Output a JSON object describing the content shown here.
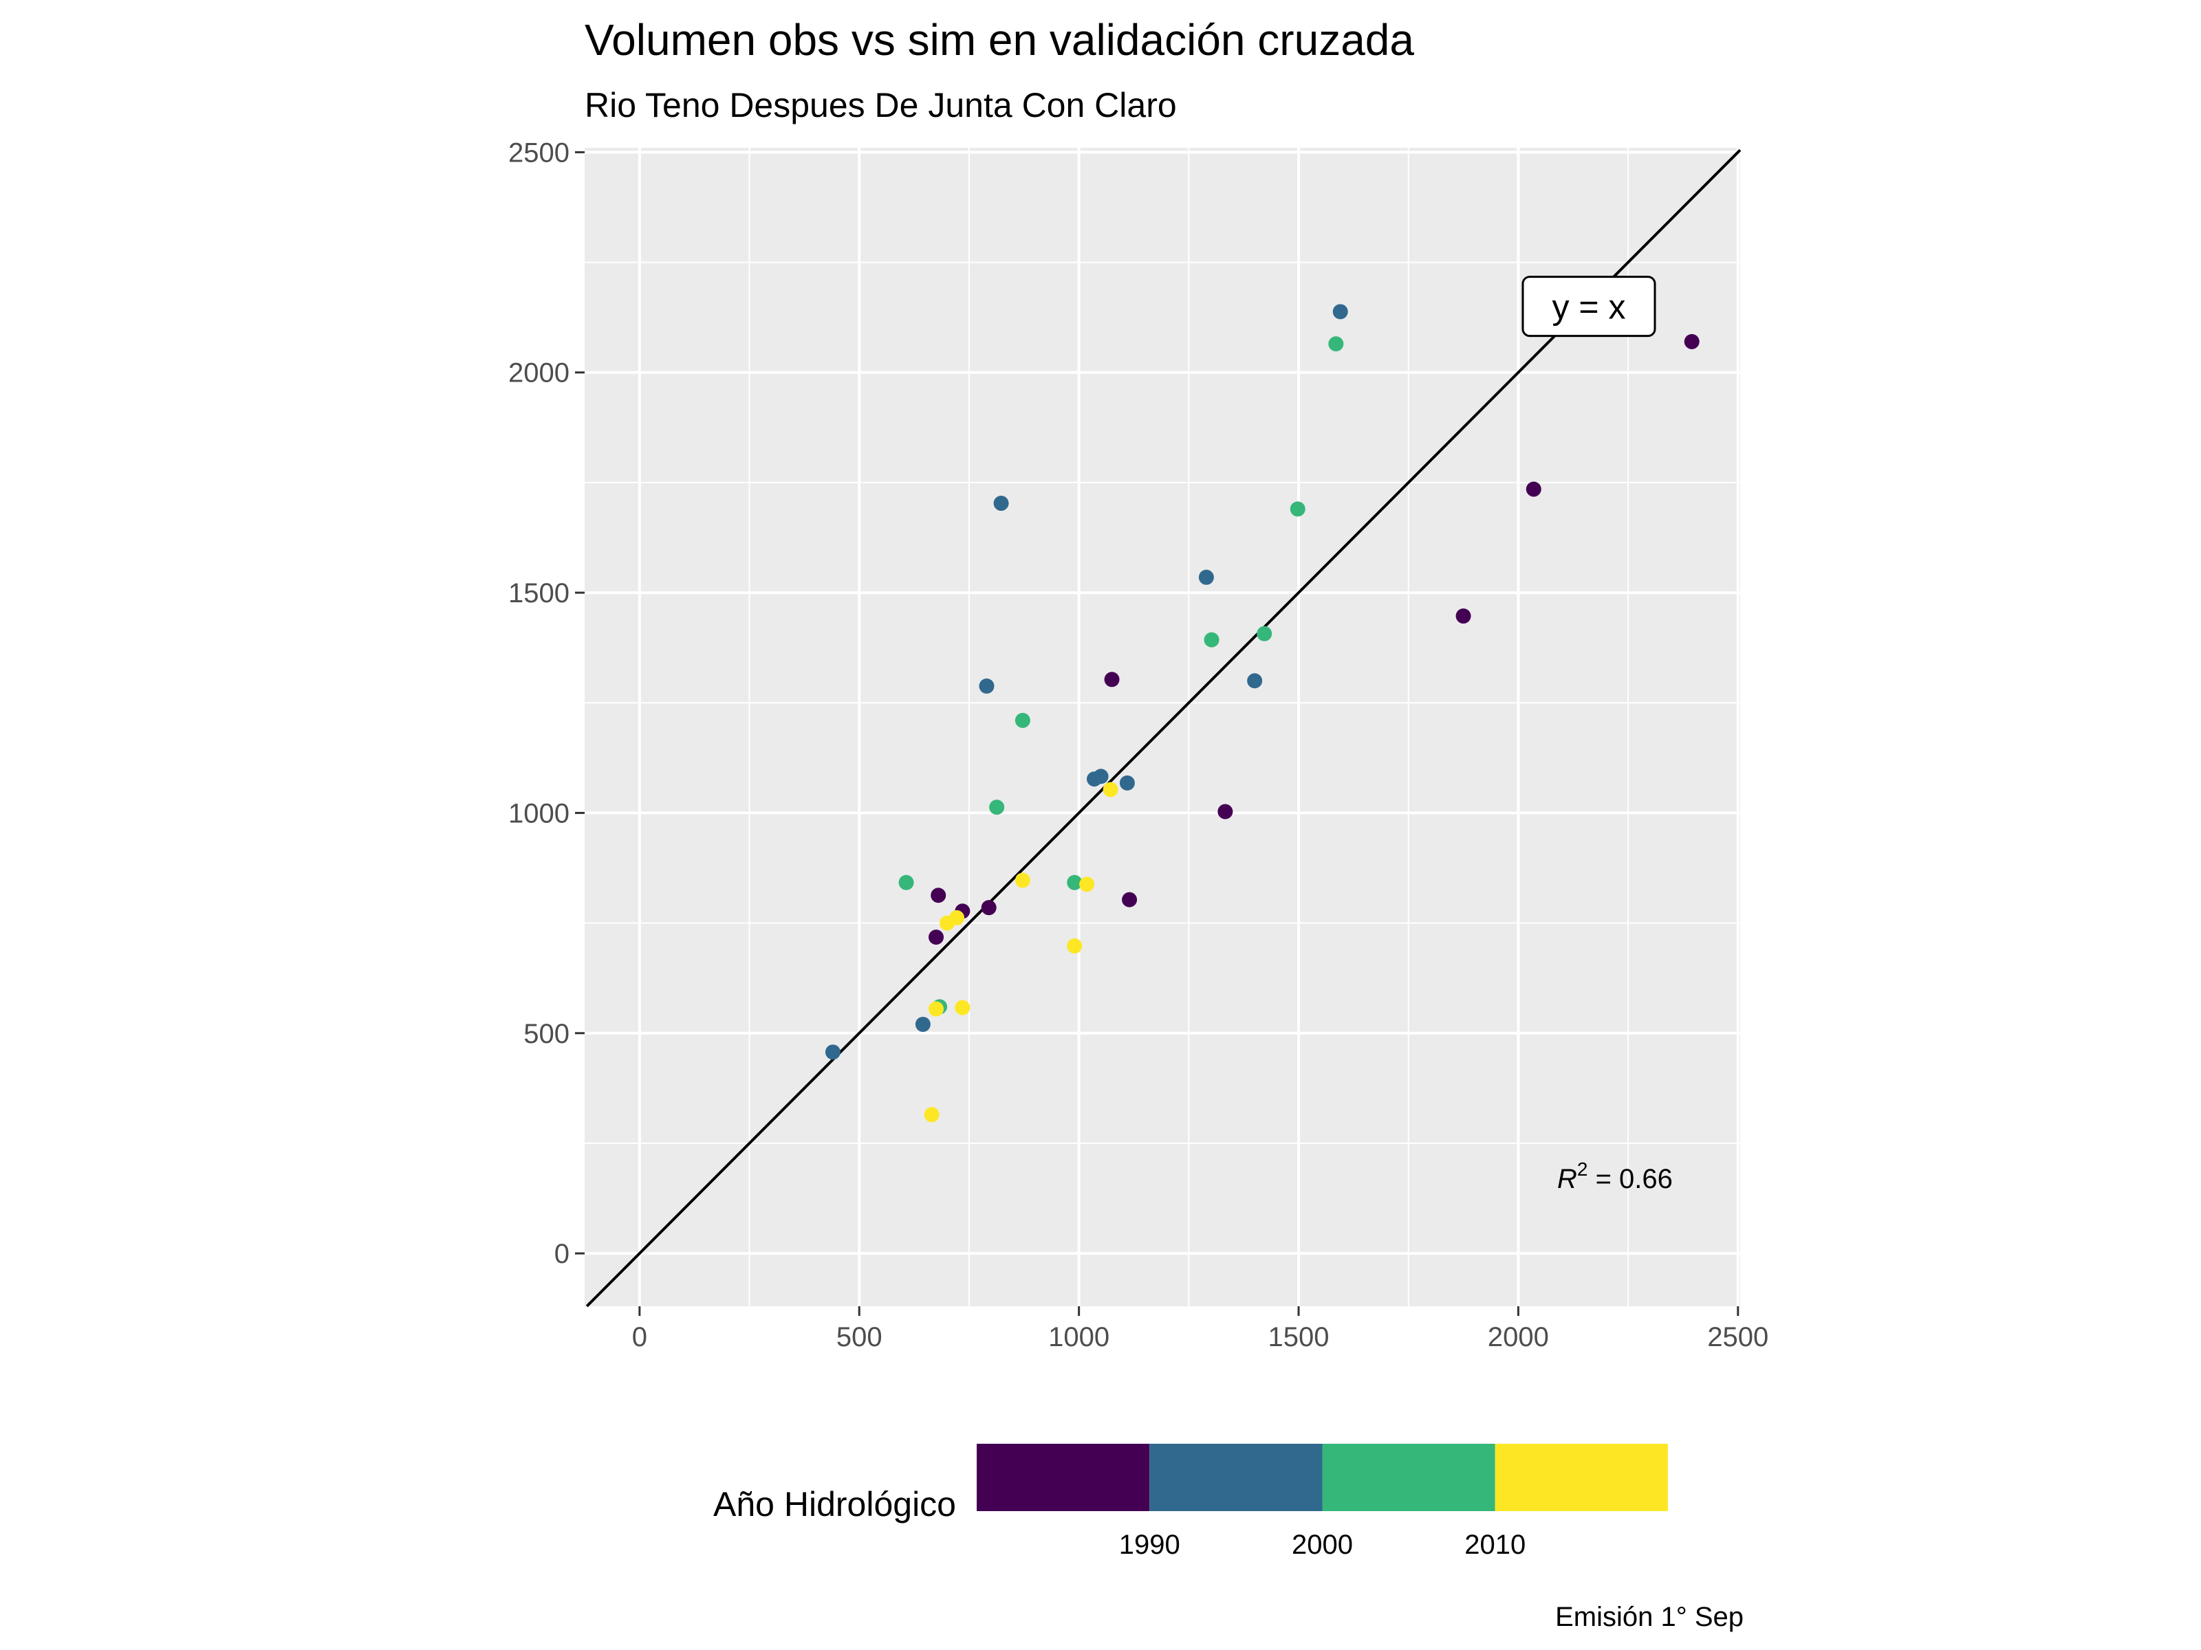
{
  "chart_data": {
    "type": "scatter",
    "title": "Volumen obs vs sim en validación cruzada",
    "subtitle": "Rio Teno Despues De Junta Con Claro",
    "xlabel": "",
    "ylabel": "",
    "xlim": [
      -125,
      2505
    ],
    "ylim": [
      -120,
      2510
    ],
    "x_ticks": [
      0,
      500,
      1000,
      1500,
      2000,
      2500
    ],
    "y_ticks": [
      0,
      500,
      1000,
      1500,
      2000,
      2500
    ],
    "grid": true,
    "reference_line": {
      "label": "y = x",
      "slope": 1,
      "intercept": 0,
      "label_x": 2170,
      "label_y": 2150
    },
    "r2_label": {
      "prefix": "R",
      "superscript": "2",
      "text": " = 0.66",
      "x": 2220,
      "y": 170
    },
    "color_legend": {
      "title": "Año Hidrológico",
      "position": "bottom",
      "bins": [
        {
          "range": [
            1980,
            1990
          ],
          "color": "#440154"
        },
        {
          "range": [
            1990,
            2000
          ],
          "color": "#31688E"
        },
        {
          "range": [
            2000,
            2010
          ],
          "color": "#35B779"
        },
        {
          "range": [
            2010,
            2020
          ],
          "color": "#FDE725"
        }
      ],
      "tick_labels": [
        "1990",
        "2000",
        "2010"
      ]
    },
    "points": [
      {
        "x": 2395,
        "y": 2070,
        "color": "#440154"
      },
      {
        "x": 2035,
        "y": 1735,
        "color": "#440154"
      },
      {
        "x": 1875,
        "y": 1447,
        "color": "#440154"
      },
      {
        "x": 1075,
        "y": 1303,
        "color": "#440154"
      },
      {
        "x": 1333,
        "y": 1003,
        "color": "#440154"
      },
      {
        "x": 1115,
        "y": 803,
        "color": "#440154"
      },
      {
        "x": 795,
        "y": 785,
        "color": "#440154"
      },
      {
        "x": 680,
        "y": 813,
        "color": "#440154"
      },
      {
        "x": 735,
        "y": 777,
        "color": "#440154"
      },
      {
        "x": 675,
        "y": 718,
        "color": "#440154"
      },
      {
        "x": 1595,
        "y": 2138,
        "color": "#31688E"
      },
      {
        "x": 823,
        "y": 1703,
        "color": "#31688E"
      },
      {
        "x": 1290,
        "y": 1535,
        "color": "#31688E"
      },
      {
        "x": 1400,
        "y": 1300,
        "color": "#31688E"
      },
      {
        "x": 790,
        "y": 1288,
        "color": "#31688E"
      },
      {
        "x": 1050,
        "y": 1083,
        "color": "#31688E"
      },
      {
        "x": 1035,
        "y": 1077,
        "color": "#31688E"
      },
      {
        "x": 1110,
        "y": 1068,
        "color": "#31688E"
      },
      {
        "x": 645,
        "y": 520,
        "color": "#31688E"
      },
      {
        "x": 440,
        "y": 457,
        "color": "#31688E"
      },
      {
        "x": 1585,
        "y": 2065,
        "color": "#35B779"
      },
      {
        "x": 1498,
        "y": 1690,
        "color": "#35B779"
      },
      {
        "x": 1422,
        "y": 1407,
        "color": "#35B779"
      },
      {
        "x": 1302,
        "y": 1393,
        "color": "#35B779"
      },
      {
        "x": 872,
        "y": 1210,
        "color": "#35B779"
      },
      {
        "x": 813,
        "y": 1013,
        "color": "#35B779"
      },
      {
        "x": 607,
        "y": 842,
        "color": "#35B779"
      },
      {
        "x": 990,
        "y": 842,
        "color": "#35B779"
      },
      {
        "x": 683,
        "y": 560,
        "color": "#35B779"
      },
      {
        "x": 1072,
        "y": 1053,
        "color": "#FDE725"
      },
      {
        "x": 872,
        "y": 847,
        "color": "#FDE725"
      },
      {
        "x": 1018,
        "y": 838,
        "color": "#FDE725"
      },
      {
        "x": 722,
        "y": 762,
        "color": "#FDE725"
      },
      {
        "x": 700,
        "y": 750,
        "color": "#FDE725"
      },
      {
        "x": 990,
        "y": 698,
        "color": "#FDE725"
      },
      {
        "x": 735,
        "y": 558,
        "color": "#FDE725"
      },
      {
        "x": 675,
        "y": 555,
        "color": "#FDE725"
      },
      {
        "x": 665,
        "y": 315,
        "color": "#FDE725"
      }
    ]
  },
  "caption": "Emisión 1° Sep"
}
